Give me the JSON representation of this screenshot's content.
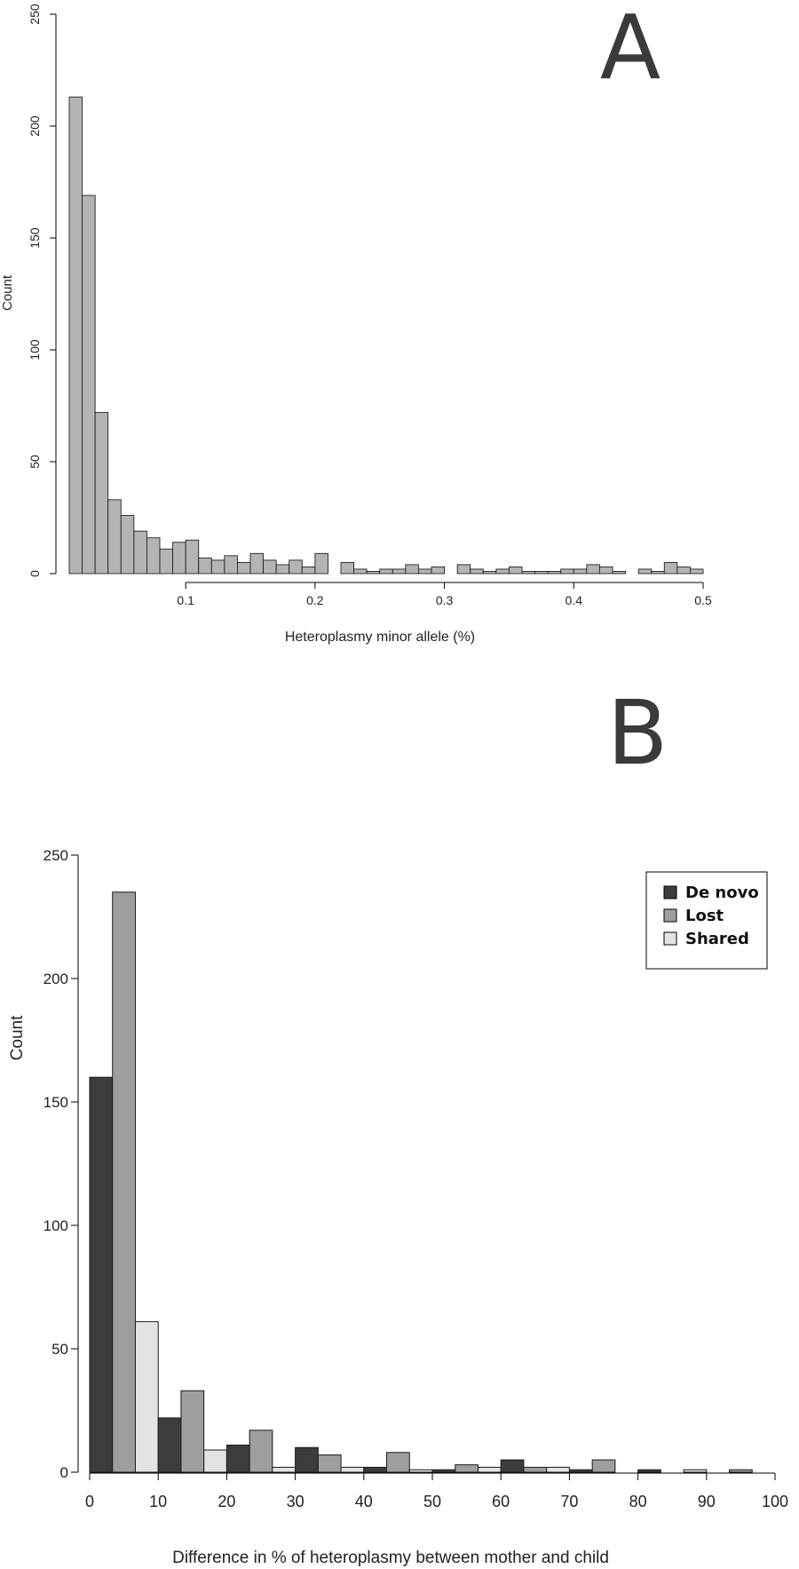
{
  "chart_data": [
    {
      "type": "bar",
      "panel_label": "A",
      "xlabel": "Heteroplasmy minor allele (%)",
      "ylabel": "Count",
      "xlim": [
        0.01,
        0.5
      ],
      "ylim": [
        0,
        250
      ],
      "x_ticks": [
        0.1,
        0.2,
        0.3,
        0.4,
        0.5
      ],
      "y_ticks": [
        0,
        50,
        100,
        150,
        200,
        250
      ],
      "bin_width": 0.01,
      "bin_starts": [
        0.01,
        0.02,
        0.03,
        0.04,
        0.05,
        0.06,
        0.07,
        0.08,
        0.09,
        0.1,
        0.11,
        0.12,
        0.13,
        0.14,
        0.15,
        0.16,
        0.17,
        0.18,
        0.19,
        0.2,
        0.21,
        0.22,
        0.23,
        0.24,
        0.25,
        0.26,
        0.27,
        0.28,
        0.29,
        0.3,
        0.31,
        0.32,
        0.33,
        0.34,
        0.35,
        0.36,
        0.37,
        0.38,
        0.39,
        0.4,
        0.41,
        0.42,
        0.43,
        0.44,
        0.45,
        0.46,
        0.47,
        0.48,
        0.49
      ],
      "values": [
        213,
        169,
        72,
        33,
        26,
        19,
        16,
        11,
        14,
        15,
        7,
        6,
        8,
        5,
        9,
        6,
        4,
        6,
        3,
        9,
        0,
        5,
        2,
        1,
        2,
        2,
        4,
        2,
        3,
        0,
        4,
        2,
        1,
        2,
        3,
        1,
        1,
        1,
        2,
        2,
        4,
        3,
        1,
        0,
        2,
        1,
        5,
        3,
        2
      ],
      "bar_color": "#b4b4b4"
    },
    {
      "type": "bar",
      "panel_label": "B",
      "xlabel": "Difference in % of heteroplasmy between mother and child",
      "ylabel": "Count",
      "xlim": [
        0,
        100
      ],
      "ylim": [
        0,
        250
      ],
      "x_ticks": [
        0,
        10,
        20,
        30,
        40,
        50,
        60,
        70,
        80,
        90,
        100
      ],
      "y_ticks": [
        0,
        50,
        100,
        150,
        200,
        250
      ],
      "groups": [
        0,
        10,
        20,
        30,
        40,
        50,
        60,
        70,
        80,
        90
      ],
      "group_width": 10,
      "legend_position": "top-right",
      "series": [
        {
          "name": "De novo",
          "color": "#3c3c3c",
          "values": [
            160,
            22,
            11,
            10,
            2,
            1,
            5,
            1,
            1,
            0
          ]
        },
        {
          "name": "Lost",
          "color": "#9e9e9e",
          "values": [
            235,
            33,
            17,
            7,
            8,
            3,
            2,
            5,
            0,
            1
          ]
        },
        {
          "name": "Shared",
          "color": "#e3e3e3",
          "values": [
            61,
            9,
            2,
            2,
            1,
            2,
            2,
            0,
            1,
            0
          ]
        }
      ]
    }
  ]
}
